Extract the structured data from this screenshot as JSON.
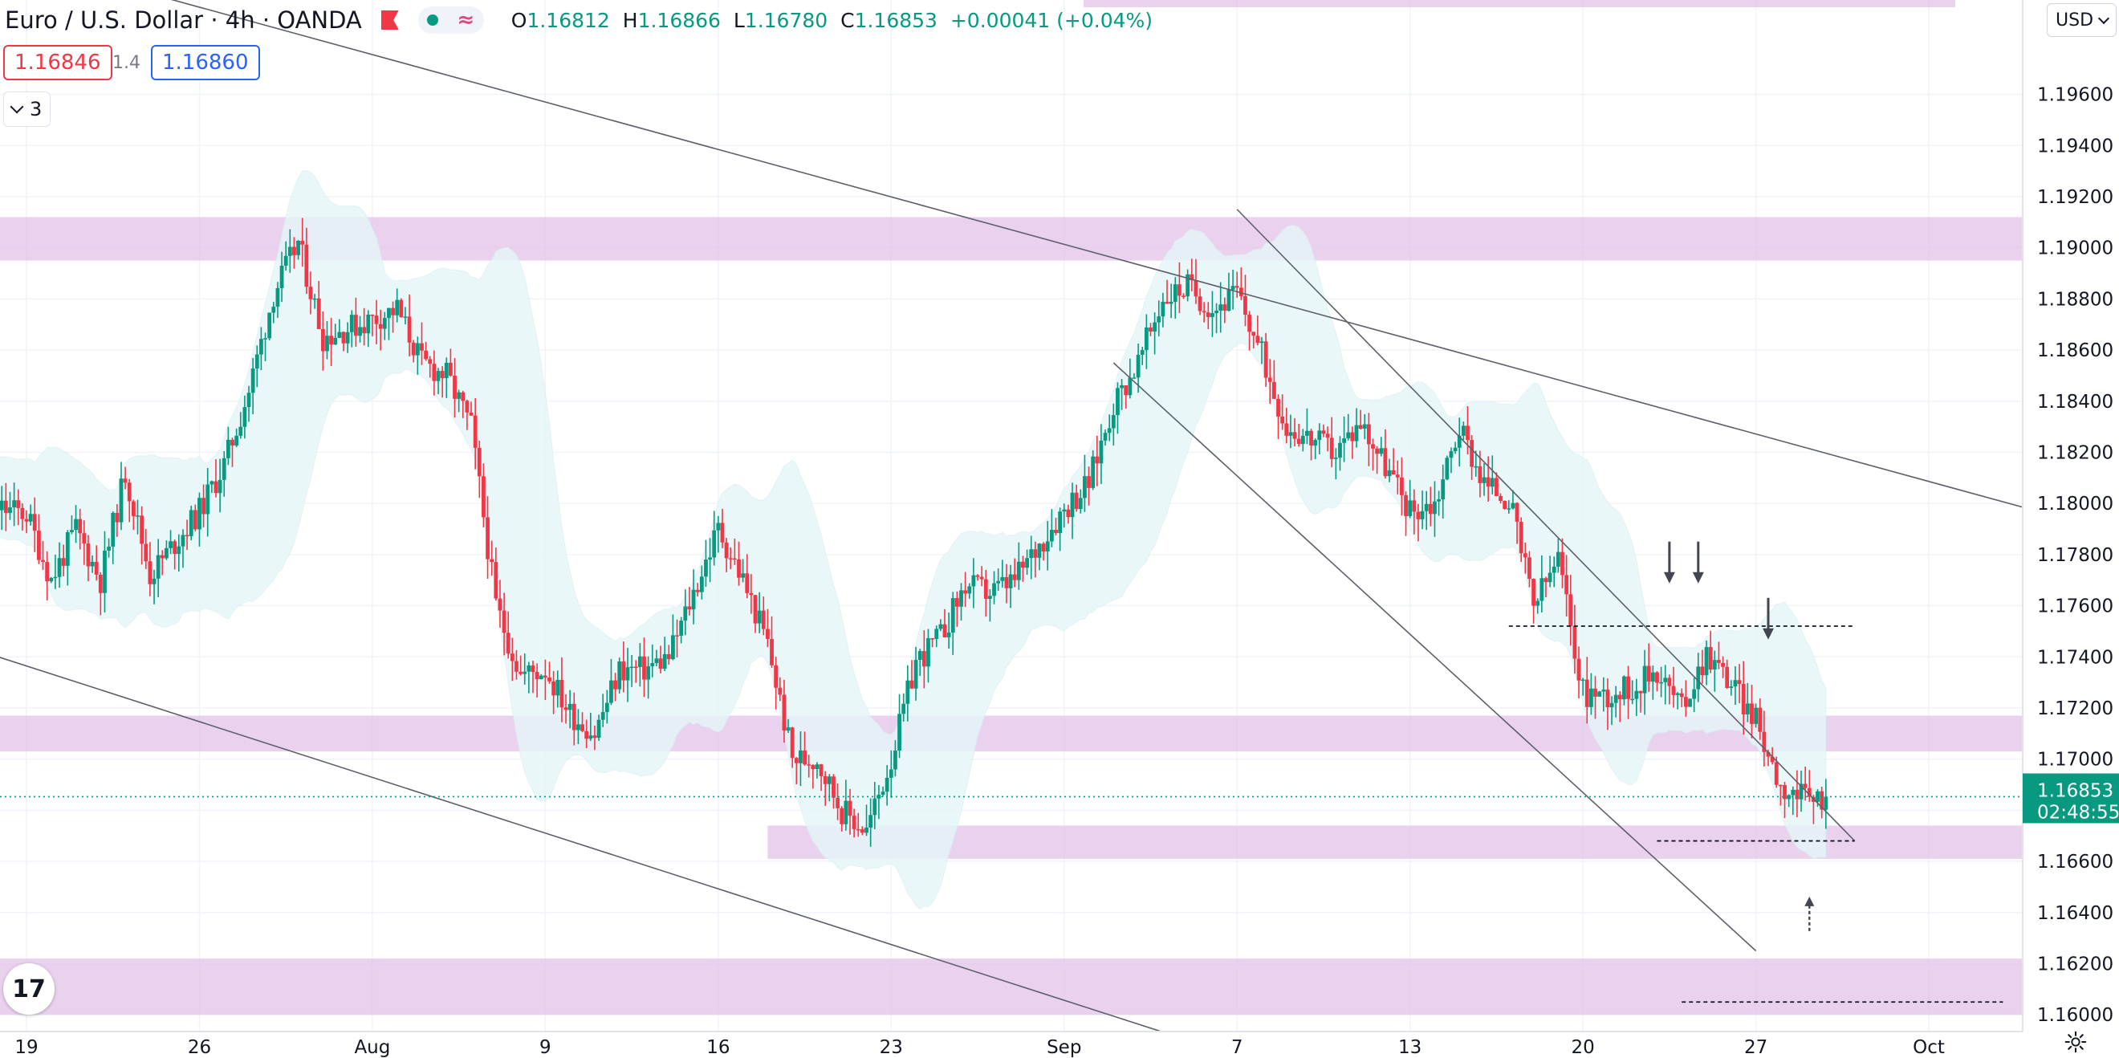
{
  "header": {
    "title": "Euro / U.S. Dollar · 4h · OANDA",
    "open_label": "O",
    "open": "1.16812",
    "high_label": "H",
    "high": "1.16866",
    "low_label": "L",
    "low": "1.16780",
    "close_label": "C",
    "close": "1.16853",
    "change": "+0.00041 (+0.04%)"
  },
  "trade": {
    "sell_price": "1.16846",
    "spread": "1.4",
    "buy_price": "1.16860"
  },
  "indicators_collapsed": {
    "count": "3"
  },
  "currency_button": "USD",
  "price_badge": {
    "price": "1.16853",
    "countdown": "02:48:55"
  },
  "logo_text": "17",
  "colors": {
    "up": "#089981",
    "down": "#f23645",
    "zone": "#e1bee7",
    "band": "#e6f6f8",
    "line": "#787b86"
  },
  "icons": [
    "flag-icon",
    "chevron-down-icon",
    "tradingview-logo-icon",
    "settings-gear-icon"
  ],
  "chart_data": {
    "type": "candlestick",
    "symbol": "EUR/USD",
    "timeframe": "4h",
    "ylim": [
      1.1586,
      1.1985
    ],
    "y_ticks": [
      "1.19600",
      "1.19400",
      "1.19200",
      "1.19000",
      "1.18800",
      "1.18600",
      "1.18400",
      "1.18200",
      "1.18000",
      "1.17800",
      "1.17600",
      "1.17400",
      "1.17200",
      "1.17000",
      "1.16800",
      "1.16600",
      "1.16400",
      "1.16200",
      "1.16000"
    ],
    "x_ticks": [
      "19",
      "26",
      "Aug",
      "9",
      "16",
      "23",
      "Sep",
      "7",
      "13",
      "20",
      "27",
      "Oct"
    ],
    "x_tick_dates": [
      "2021-07-19",
      "2021-07-26",
      "2021-08-02",
      "2021-08-09",
      "2021-08-16",
      "2021-08-23",
      "2021-08-30",
      "2021-09-06",
      "2021-09-13",
      "2021-09-20",
      "2021-09-27",
      "2021-10-04"
    ],
    "price_path": [
      [
        "2021-07-16",
        1.181
      ],
      [
        "2021-07-17",
        1.18
      ],
      [
        "2021-07-19",
        1.1796
      ],
      [
        "2021-07-20",
        1.177
      ],
      [
        "2021-07-21",
        1.179
      ],
      [
        "2021-07-22",
        1.177
      ],
      [
        "2021-07-23",
        1.1812
      ],
      [
        "2021-07-24",
        1.1772
      ],
      [
        "2021-07-26",
        1.1797
      ],
      [
        "2021-07-27",
        1.1815
      ],
      [
        "2021-07-28",
        1.1844
      ],
      [
        "2021-07-29",
        1.1882
      ],
      [
        "2021-07-30",
        1.1902
      ],
      [
        "2021-07-31",
        1.1865
      ],
      [
        "2021-08-02",
        1.1872
      ],
      [
        "2021-08-03",
        1.1876
      ],
      [
        "2021-08-04",
        1.1855
      ],
      [
        "2021-08-05",
        1.185
      ],
      [
        "2021-08-06",
        1.183
      ],
      [
        "2021-08-07",
        1.176
      ],
      [
        "2021-08-08",
        1.1733
      ],
      [
        "2021-08-09",
        1.1735
      ],
      [
        "2021-08-10",
        1.1718
      ],
      [
        "2021-08-11",
        1.171
      ],
      [
        "2021-08-12",
        1.1735
      ],
      [
        "2021-08-13",
        1.1735
      ],
      [
        "2021-08-14",
        1.174
      ],
      [
        "2021-08-16",
        1.179
      ],
      [
        "2021-08-17",
        1.177
      ],
      [
        "2021-08-18",
        1.1745
      ],
      [
        "2021-08-19",
        1.17
      ],
      [
        "2021-08-20",
        1.17
      ],
      [
        "2021-08-21",
        1.168
      ],
      [
        "2021-08-22",
        1.1672
      ],
      [
        "2021-08-23",
        1.17
      ],
      [
        "2021-08-24",
        1.1738
      ],
      [
        "2021-08-25",
        1.1748
      ],
      [
        "2021-08-26",
        1.1768
      ],
      [
        "2021-08-27",
        1.1765
      ],
      [
        "2021-08-28",
        1.177
      ],
      [
        "2021-08-30",
        1.1798
      ],
      [
        "2021-08-31",
        1.1808
      ],
      [
        "2021-09-01",
        1.1839
      ],
      [
        "2021-09-02",
        1.1855
      ],
      [
        "2021-09-03",
        1.188
      ],
      [
        "2021-09-04",
        1.1885
      ],
      [
        "2021-09-05",
        1.1876
      ],
      [
        "2021-09-06",
        1.1882
      ],
      [
        "2021-09-07",
        1.1858
      ],
      [
        "2021-09-08",
        1.183
      ],
      [
        "2021-09-09",
        1.1825
      ],
      [
        "2021-09-10",
        1.182
      ],
      [
        "2021-09-11",
        1.1832
      ],
      [
        "2021-09-12",
        1.1815
      ],
      [
        "2021-09-13",
        1.1797
      ],
      [
        "2021-09-14",
        1.18
      ],
      [
        "2021-09-15",
        1.183
      ],
      [
        "2021-09-16",
        1.1808
      ],
      [
        "2021-09-17",
        1.1802
      ],
      [
        "2021-09-18",
        1.176
      ],
      [
        "2021-09-19",
        1.1778
      ],
      [
        "2021-09-20",
        1.1726
      ],
      [
        "2021-09-21",
        1.1725
      ],
      [
        "2021-09-22",
        1.1728
      ],
      [
        "2021-09-23",
        1.1735
      ],
      [
        "2021-09-24",
        1.172
      ],
      [
        "2021-09-25",
        1.1742
      ],
      [
        "2021-09-26",
        1.173
      ],
      [
        "2021-09-27",
        1.1715
      ],
      [
        "2021-09-28",
        1.169
      ],
      [
        "2021-09-29",
        1.1684
      ],
      [
        "2021-09-29T20:00",
        1.16853
      ]
    ],
    "last_price": 1.16853,
    "supply_demand_zones": [
      [
        1.1895,
        1.1912
      ],
      [
        1.1703,
        1.1717
      ],
      [
        1.1661,
        1.1674
      ],
      [
        1.16,
        1.1622
      ]
    ],
    "trendlines": [
      {
        "from": [
          "2021-07-20",
          1.201
        ],
        "to": [
          "2021-10-08",
          1.1798
        ]
      },
      {
        "from": [
          "2021-07-14",
          1.1752
        ],
        "to": [
          "2021-09-05",
          1.1587
        ]
      },
      {
        "from": [
          "2021-09-01",
          1.1855
        ],
        "to": [
          "2021-09-27",
          1.1625
        ]
      },
      {
        "from": [
          "2021-09-06",
          1.1915
        ],
        "to": [
          "2021-10-01",
          1.1668
        ]
      }
    ],
    "horizontal_levels": [
      {
        "value": 1.1752,
        "from": "2021-09-17",
        "to": "2021-10-01"
      },
      {
        "value": 1.1668,
        "from": "2021-09-23",
        "to": "2021-10-01"
      },
      {
        "value": 1.1605,
        "from": "2021-09-24",
        "to": "2021-10-07"
      }
    ],
    "arrows": [
      {
        "date": "2021-09-23T12:00",
        "value": 1.177,
        "direction": "down"
      },
      {
        "date": "2021-09-24T16:00",
        "value": 1.177,
        "direction": "down"
      },
      {
        "date": "2021-09-27T12:00",
        "value": 1.1748,
        "direction": "down"
      },
      {
        "date": "2021-09-29T04:00",
        "value": 1.1645,
        "direction": "up"
      }
    ]
  }
}
